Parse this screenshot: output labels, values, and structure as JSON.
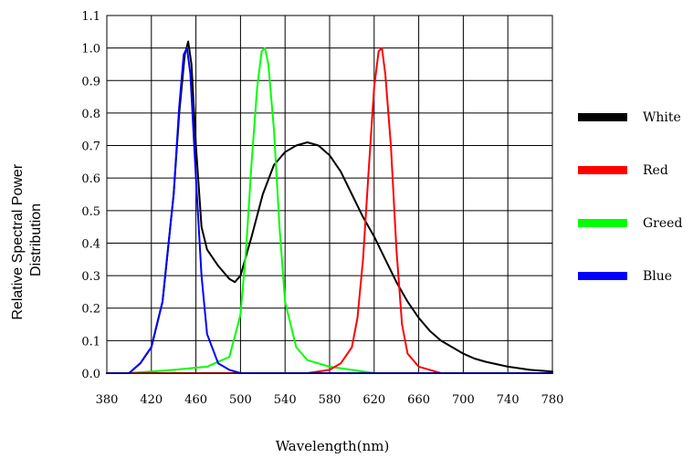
{
  "chart_data": {
    "type": "line",
    "ylabel_lines": [
      "Relative Spectral Power",
      "Distribution"
    ],
    "xlabel": "Wavelength(nm)",
    "xlim": [
      380,
      780
    ],
    "ylim": [
      0,
      1.1
    ],
    "grid": true,
    "x_ticks": [
      380,
      420,
      460,
      500,
      540,
      580,
      620,
      660,
      700,
      740,
      780
    ],
    "y_ticks": [
      "0.0",
      "0.1",
      "0.2",
      "0.3",
      "0.4",
      "0.5",
      "0.6",
      "0.7",
      "0.8",
      "0.9",
      "1.0",
      "1.1"
    ],
    "legend_position": "right",
    "series": [
      {
        "name": "White",
        "color": "#000000",
        "x": [
          380,
          400,
          410,
          420,
          430,
          440,
          445,
          450,
          453,
          456,
          460,
          465,
          470,
          480,
          490,
          495,
          500,
          510,
          520,
          530,
          540,
          550,
          560,
          570,
          580,
          590,
          600,
          610,
          620,
          630,
          640,
          650,
          660,
          670,
          680,
          690,
          700,
          710,
          720,
          740,
          760,
          780
        ],
        "y": [
          0.0,
          0.0,
          0.03,
          0.08,
          0.22,
          0.55,
          0.8,
          0.98,
          1.02,
          0.95,
          0.7,
          0.45,
          0.38,
          0.33,
          0.29,
          0.28,
          0.3,
          0.42,
          0.55,
          0.64,
          0.68,
          0.7,
          0.71,
          0.7,
          0.67,
          0.62,
          0.55,
          0.48,
          0.42,
          0.35,
          0.28,
          0.22,
          0.17,
          0.13,
          0.1,
          0.08,
          0.06,
          0.045,
          0.035,
          0.02,
          0.01,
          0.005
        ]
      },
      {
        "name": "Red",
        "color": "#ff0000",
        "x": [
          380,
          560,
          580,
          590,
          600,
          605,
          610,
          615,
          620,
          624,
          627,
          630,
          635,
          640,
          645,
          650,
          660,
          670,
          680,
          780
        ],
        "y": [
          0.0,
          0.0,
          0.01,
          0.03,
          0.08,
          0.17,
          0.35,
          0.62,
          0.88,
          0.99,
          1.0,
          0.92,
          0.7,
          0.38,
          0.15,
          0.06,
          0.02,
          0.01,
          0.0,
          0.0
        ]
      },
      {
        "name": "Greed",
        "color": "#00ff00",
        "x": [
          380,
          400,
          440,
          470,
          490,
          500,
          505,
          510,
          515,
          519,
          522,
          525,
          530,
          535,
          540,
          550,
          560,
          580,
          600,
          620,
          640
        ],
        "y": [
          0.0,
          0.0,
          0.01,
          0.02,
          0.05,
          0.18,
          0.38,
          0.65,
          0.88,
          0.99,
          1.0,
          0.95,
          0.75,
          0.45,
          0.22,
          0.08,
          0.04,
          0.02,
          0.01,
          0.0,
          0.0
        ]
      },
      {
        "name": "Blue",
        "color": "#0000ff",
        "x": [
          380,
          400,
          410,
          420,
          430,
          440,
          445,
          449,
          452,
          455,
          460,
          465,
          470,
          480,
          490,
          500,
          780
        ],
        "y": [
          0.0,
          0.0,
          0.03,
          0.08,
          0.22,
          0.55,
          0.82,
          0.98,
          1.0,
          0.92,
          0.6,
          0.3,
          0.12,
          0.03,
          0.01,
          0.0,
          0.0
        ]
      }
    ]
  }
}
